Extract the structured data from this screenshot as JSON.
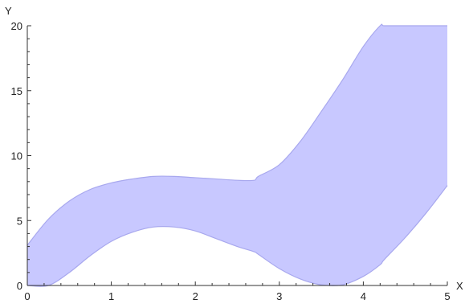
{
  "chart_data": {
    "type": "area",
    "title": "",
    "xlabel": "X",
    "ylabel": "Y",
    "xlim": [
      0,
      5
    ],
    "ylim": [
      0,
      20
    ],
    "grid": false,
    "x_ticks": [
      0,
      1,
      2,
      3,
      4,
      5
    ],
    "y_ticks": [
      0,
      5,
      10,
      15,
      20
    ],
    "x_tick_labels": [
      "0",
      "1",
      "2",
      "3",
      "4",
      "5"
    ],
    "y_tick_labels": [
      "0",
      "5",
      "10",
      "15",
      "20"
    ],
    "fill_color": "#c8c8ff",
    "edge_color": "#a8a8ee",
    "series": [
      {
        "x": [
          0,
          0.25,
          0.5,
          0.75,
          1.0,
          1.25,
          1.5,
          1.75,
          2.0,
          2.25,
          2.5,
          2.7,
          2.75,
          3.0,
          3.25,
          3.5,
          3.75,
          4.0,
          4.2,
          4.25,
          4.5,
          4.75,
          5.0
        ],
        "upper": [
          3.1,
          5.1,
          6.5,
          7.4,
          7.9,
          8.2,
          8.4,
          8.4,
          8.3,
          8.2,
          8.1,
          8.1,
          8.4,
          9.3,
          11.1,
          13.4,
          15.8,
          18.4,
          20.0,
          20.0,
          20.0,
          20.0,
          20.0
        ],
        "lower": [
          0,
          0,
          1.0,
          2.3,
          3.4,
          4.1,
          4.5,
          4.5,
          4.2,
          3.6,
          3.0,
          2.6,
          2.4,
          1.3,
          0.5,
          0.05,
          0.05,
          0.7,
          1.6,
          2.0,
          3.7,
          5.6,
          7.7
        ]
      }
    ]
  }
}
